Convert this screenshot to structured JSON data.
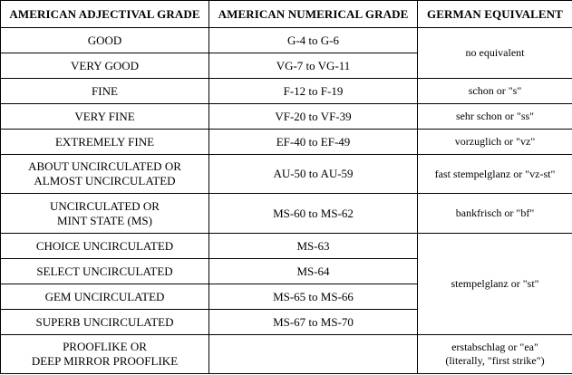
{
  "table": {
    "headers": {
      "adjectival": "AMERICAN ADJECTIVAL GRADE",
      "numerical": "AMERICAN NUMERICAL GRADE",
      "german": "GERMAN EQUIVALENT"
    },
    "rows": [
      {
        "adjectival": "GOOD",
        "numerical": "G-4 to G-6",
        "german": "no equivalent"
      },
      {
        "adjectival": "VERY GOOD",
        "numerical": "VG-7 to VG-11"
      },
      {
        "adjectival": "FINE",
        "numerical": "F-12 to F-19",
        "german": "schon or \"s\""
      },
      {
        "adjectival": "VERY FINE",
        "numerical": "VF-20 to VF-39",
        "german": "sehr schon or \"ss\""
      },
      {
        "adjectival": "EXTREMELY FINE",
        "numerical": "EF-40 to EF-49",
        "german": "vorzuglich or \"vz\""
      },
      {
        "adjectival_line1": "ABOUT UNCIRCULATED OR",
        "adjectival_line2": "ALMOST UNCIRCULATED",
        "numerical": "AU-50 to AU-59",
        "german": "fast stempelglanz or \"vz-st\""
      },
      {
        "adjectival_line1": "UNCIRCULATED OR",
        "adjectival_line2": "MINT STATE (MS)",
        "numerical": "MS-60 to MS-62",
        "german": "bankfrisch or \"bf\""
      },
      {
        "adjectival": "CHOICE UNCIRCULATED",
        "numerical": "MS-63",
        "german": "stempelglanz or \"st\""
      },
      {
        "adjectival": "SELECT UNCIRCULATED",
        "numerical": "MS-64"
      },
      {
        "adjectival": "GEM UNCIRCULATED",
        "numerical": "MS-65 to MS-66"
      },
      {
        "adjectival": "SUPERB UNCIRCULATED",
        "numerical": "MS-67 to MS-70"
      },
      {
        "adjectival_line1": "PROOFLIKE OR",
        "adjectival_line2": "DEEP MIRROR PROOFLIKE",
        "numerical": "",
        "german_line1": "erstabschlag or \"ea\"",
        "german_line2": "(literally, \"first strike\")"
      }
    ]
  }
}
